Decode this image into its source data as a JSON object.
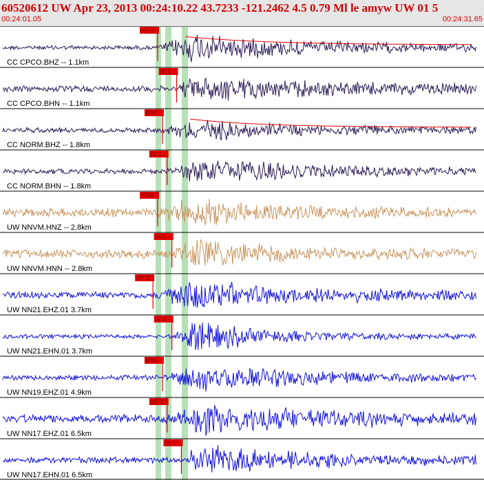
{
  "header": {
    "title": "60520612 UW Apr 23, 2013 00:24:10.22    43.7233 -121.2462  4.5 0.79 Ml le amyw UW 01    5",
    "time_start": "00:24:01.05",
    "time_end": "00:24:31.65"
  },
  "colors": {
    "header_bg": "#e6e6e6",
    "header_text": "#d40000",
    "pick": "#e00000",
    "window_band": "#b8e0b8",
    "trace_dark": "#2a1a55",
    "trace_tan": "#c8955e",
    "trace_blue": "#1010dd"
  },
  "chart_data": {
    "type": "line",
    "title": "60520612 UW Apr 23, 2013 00:24:10.22    43.7233 -121.2462  4.5 0.79 Ml le amyw UW 01    5",
    "xlabel": "",
    "ylabel": "",
    "x_range": [
      "00:24:01.05",
      "00:24:31.65"
    ],
    "grid": false,
    "channels": [
      {
        "label": "CC CPCO.BHZ -- 1.1km",
        "color": "trace_dark",
        "pick": "eP 2",
        "amp": 18,
        "noise": 2.5,
        "coda": 4,
        "onset": 0.33,
        "peak": 0.4,
        "decay": 0.22,
        "hasDecayCurve": true
      },
      {
        "label": "CC CPCO.BHN -- 1.1km",
        "color": "trace_dark",
        "pick": "iS 1",
        "amp": 16,
        "noise": 3.5,
        "coda": 5,
        "onset": 0.37,
        "peak": 0.4,
        "decay": 0.28
      },
      {
        "label": "CC NORM.BHZ -- 1.8km",
        "color": "trace_dark",
        "pick": "iPc0",
        "amp": 14,
        "noise": 3,
        "coda": 4,
        "onset": 0.34,
        "peak": 0.41,
        "decay": 0.2,
        "hasDecayCurve": true
      },
      {
        "label": "CC NORM.BHN -- 1.8km",
        "color": "trace_dark",
        "pick": "iS 1",
        "amp": 16,
        "noise": 3,
        "coda": 4,
        "onset": 0.35,
        "peak": 0.42,
        "decay": 0.22
      },
      {
        "label": "UW NNVM.HNZ -- 2.8km",
        "color": "trace_tan",
        "pick": "iPc0",
        "amp": 18,
        "noise": 5,
        "coda": 5,
        "onset": 0.33,
        "peak": 0.4,
        "decay": 0.2
      },
      {
        "label": "UW NNVM.HNN -- 2.8km",
        "color": "trace_tan",
        "pick": "iS 0",
        "amp": 18,
        "noise": 5,
        "coda": 5,
        "onset": 0.36,
        "peak": 0.4,
        "decay": 0.22
      },
      {
        "label": "UW NN21.EHZ.01 3.7km",
        "color": "trace_blue",
        "pick": "eP 2",
        "amp": 18,
        "noise": 4,
        "coda": 5,
        "onset": 0.32,
        "peak": 0.4,
        "decay": 0.24
      },
      {
        "label": "UW NN21.EHN.01 3.7km",
        "color": "trace_blue",
        "pick": "iS 1",
        "amp": 20,
        "noise": 2.5,
        "coda": 3,
        "onset": 0.36,
        "peak": 0.4,
        "decay": 0.14
      },
      {
        "label": "UW NN19.EHZ.01 4.9km",
        "color": "trace_blue",
        "pick": "iPc0",
        "amp": 18,
        "noise": 3,
        "coda": 4,
        "onset": 0.34,
        "peak": 0.42,
        "decay": 0.2
      },
      {
        "label": "UW NN17.EHZ.01 6.5km",
        "color": "trace_blue",
        "pick": "eP 2",
        "amp": 20,
        "noise": 5,
        "coda": 6,
        "onset": 0.35,
        "peak": 0.43,
        "decay": 0.24
      },
      {
        "label": "UW NN17.EHN.01 6.5km",
        "color": "trace_blue",
        "pick": "iS 1",
        "amp": 20,
        "noise": 3.5,
        "coda": 5,
        "onset": 0.38,
        "peak": 0.42,
        "decay": 0.2
      }
    ]
  }
}
